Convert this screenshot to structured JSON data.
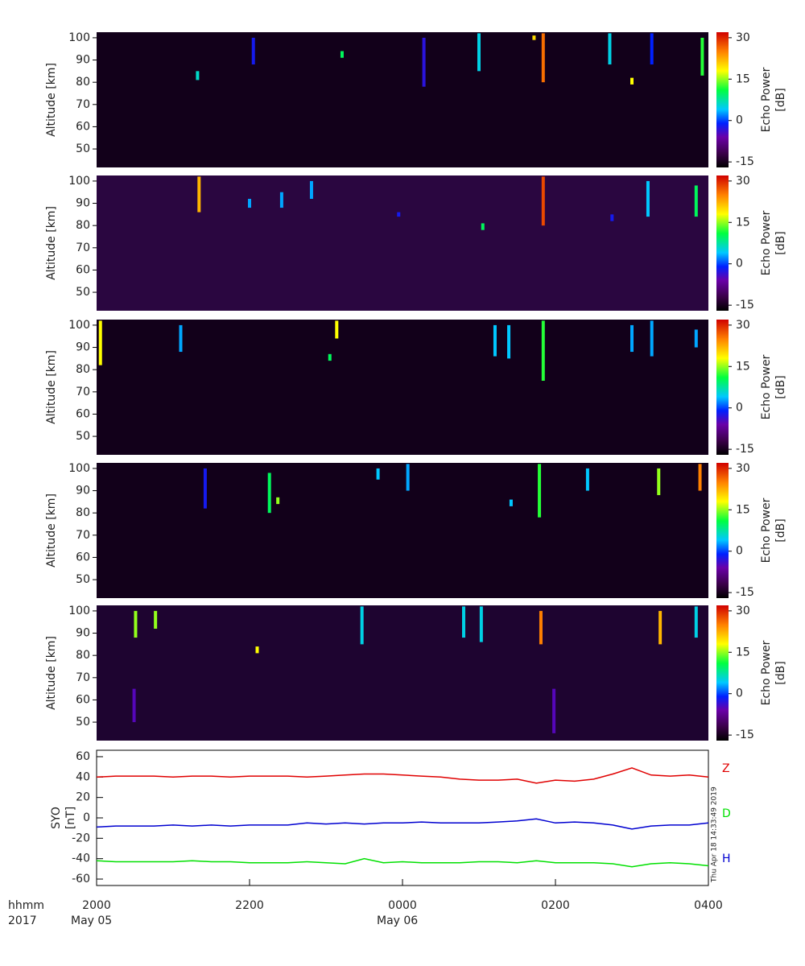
{
  "chart_data": [
    {
      "type": "heatmap",
      "ylabel": "Altitude [km]",
      "clabel": "Echo Power",
      "cunit": "[dB]",
      "xlim": [
        0,
        8
      ],
      "ylim": [
        41.7,
        102.5
      ],
      "yticks": [
        50,
        60,
        70,
        80,
        90,
        100
      ],
      "clim": [
        -17,
        32
      ],
      "cticks": [
        -15,
        0,
        15,
        30
      ],
      "background": "#12001a",
      "colormap": {
        "values": [
          -17,
          -12,
          -6,
          -1,
          4,
          11,
          18,
          25,
          32
        ],
        "colors": [
          "#000000",
          "#3a0048",
          "#6a00a8",
          "#0020ff",
          "#00c8ff",
          "#00ff40",
          "#ffff00",
          "#ff8000",
          "#d00000"
        ]
      },
      "echoes": {
        "time": [
          5.84,
          5.0,
          4.28,
          2.05,
          6.71,
          7.26,
          7.92,
          1.32,
          5.72,
          7.0,
          3.21
        ],
        "alt_low": [
          80,
          85,
          78,
          88,
          88,
          88,
          83,
          81,
          99,
          79,
          91
        ],
        "alt_high": [
          102,
          102,
          100,
          100,
          102,
          102,
          100,
          85,
          101,
          82,
          94
        ],
        "power": [
          26,
          5,
          -3,
          -2,
          5,
          -1,
          12,
          6,
          20,
          18,
          10
        ]
      }
    },
    {
      "type": "heatmap",
      "ylabel": "Altitude [km]",
      "clabel": "Echo Power",
      "cunit": "[dB]",
      "xlim": [
        0,
        8
      ],
      "ylim": [
        41.7,
        102.5
      ],
      "yticks": [
        50,
        60,
        70,
        80,
        90,
        100
      ],
      "clim": [
        -17,
        32
      ],
      "cticks": [
        -15,
        0,
        15,
        30
      ],
      "background": "#2a0640",
      "colormap": {
        "values": [
          -17,
          -12,
          -6,
          -1,
          4,
          11,
          18,
          25,
          32
        ],
        "colors": [
          "#000000",
          "#3a0048",
          "#6a00a8",
          "#0020ff",
          "#00c8ff",
          "#00ff40",
          "#ffff00",
          "#ff8000",
          "#d00000"
        ]
      },
      "echoes": {
        "time": [
          1.34,
          5.84,
          2.0,
          2.42,
          5.05,
          6.74,
          7.21,
          7.84,
          2.81,
          3.95
        ],
        "alt_low": [
          86,
          80,
          88,
          88,
          78,
          82,
          84,
          84,
          92,
          84
        ],
        "alt_high": [
          102,
          102,
          92,
          95,
          81,
          85,
          100,
          98,
          100,
          86
        ],
        "power": [
          22,
          28,
          3,
          3,
          10,
          -2,
          4,
          10,
          3,
          -2
        ]
      }
    },
    {
      "type": "heatmap",
      "ylabel": "Altitude [km]",
      "clabel": "Echo Power",
      "cunit": "[dB]",
      "xlim": [
        0,
        8
      ],
      "ylim": [
        41.7,
        102.5
      ],
      "yticks": [
        50,
        60,
        70,
        80,
        90,
        100
      ],
      "clim": [
        -17,
        32
      ],
      "cticks": [
        -15,
        0,
        15,
        30
      ],
      "background": "#12001a",
      "colormap": {
        "values": [
          -17,
          -12,
          -6,
          -1,
          4,
          11,
          18,
          25,
          32
        ],
        "colors": [
          "#000000",
          "#3a0048",
          "#6a00a8",
          "#0020ff",
          "#00c8ff",
          "#00ff40",
          "#ffff00",
          "#ff8000",
          "#d00000"
        ]
      },
      "echoes": {
        "time": [
          0.05,
          3.14,
          5.84,
          5.39,
          5.21,
          1.1,
          7.0,
          7.26,
          7.84,
          3.05
        ],
        "alt_low": [
          82,
          94,
          75,
          85,
          86,
          88,
          88,
          86,
          90,
          84
        ],
        "alt_high": [
          102,
          102,
          102,
          100,
          100,
          100,
          100,
          102,
          98,
          87
        ],
        "power": [
          18,
          18,
          12,
          4,
          4,
          3,
          3,
          3,
          3,
          10
        ]
      }
    },
    {
      "type": "heatmap",
      "ylabel": "Altitude [km]",
      "clabel": "Echo Power",
      "cunit": "[dB]",
      "xlim": [
        0,
        8
      ],
      "ylim": [
        41.7,
        102.5
      ],
      "yticks": [
        50,
        60,
        70,
        80,
        90,
        100
      ],
      "clim": [
        -17,
        32
      ],
      "cticks": [
        -15,
        0,
        15,
        30
      ],
      "background": "#12001a",
      "colormap": {
        "values": [
          -17,
          -12,
          -6,
          -1,
          4,
          11,
          18,
          25,
          32
        ],
        "colors": [
          "#000000",
          "#3a0048",
          "#6a00a8",
          "#0020ff",
          "#00c8ff",
          "#00ff40",
          "#ffff00",
          "#ff8000",
          "#d00000"
        ]
      },
      "echoes": {
        "time": [
          2.26,
          4.07,
          5.79,
          7.35,
          7.89,
          1.42,
          5.42,
          6.42,
          3.68,
          2.37
        ],
        "alt_low": [
          80,
          90,
          78,
          88,
          90,
          82,
          83,
          90,
          95,
          84
        ],
        "alt_high": [
          98,
          102,
          102,
          100,
          102,
          100,
          86,
          100,
          100,
          87
        ],
        "power": [
          10,
          3,
          12,
          15,
          25,
          -2,
          4,
          4,
          4,
          15
        ]
      }
    },
    {
      "type": "heatmap",
      "ylabel": "Altitude [km]",
      "clabel": "Echo Power",
      "cunit": "[dB]",
      "xlim": [
        0,
        8
      ],
      "ylim": [
        41.7,
        102.5
      ],
      "yticks": [
        50,
        60,
        70,
        80,
        90,
        100
      ],
      "clim": [
        -17,
        32
      ],
      "cticks": [
        -15,
        0,
        15,
        30
      ],
      "background": "#1e0430",
      "colormap": {
        "values": [
          -17,
          -12,
          -6,
          -1,
          4,
          11,
          18,
          25,
          32
        ],
        "colors": [
          "#000000",
          "#3a0048",
          "#6a00a8",
          "#0020ff",
          "#00c8ff",
          "#00ff40",
          "#ffff00",
          "#ff8000",
          "#d00000"
        ]
      },
      "echoes": {
        "time": [
          0.51,
          0.77,
          3.47,
          4.8,
          5.03,
          5.81,
          5.98,
          7.37,
          7.84,
          0.49,
          2.1
        ],
        "alt_low": [
          88,
          92,
          85,
          88,
          86,
          85,
          45,
          85,
          88,
          50,
          81
        ],
        "alt_high": [
          100,
          100,
          102,
          102,
          102,
          100,
          65,
          100,
          102,
          65,
          84
        ],
        "power": [
          15,
          15,
          5,
          5,
          5,
          25,
          -5,
          22,
          5,
          -5,
          18
        ]
      }
    },
    {
      "type": "line",
      "ylabel": "SYO",
      "yunit": "[nT]",
      "timestamp": "Thu Apr 18 14:33:49 2019",
      "xlim": [
        0,
        8
      ],
      "ylim": [
        -66.3,
        66.3
      ],
      "yticks": [
        60,
        40,
        20,
        0,
        -20,
        -40,
        -60
      ],
      "xticks": [
        {
          "value": 0,
          "label": "2000"
        },
        {
          "value": 2,
          "label": "2200"
        },
        {
          "value": 4,
          "label": "0000"
        },
        {
          "value": 6,
          "label": "0200"
        },
        {
          "value": 8,
          "label": "0400"
        }
      ],
      "x_date_labels": [
        {
          "value": 0,
          "label": "May 05"
        },
        {
          "value": 4,
          "label": "May 06"
        }
      ],
      "x_row_labels": [
        "hhmm",
        "2017"
      ],
      "x": [
        0,
        0.25,
        0.5,
        0.75,
        1,
        1.25,
        1.5,
        1.75,
        2,
        2.25,
        2.5,
        2.75,
        3,
        3.25,
        3.5,
        3.75,
        4,
        4.25,
        4.5,
        4.75,
        5,
        5.25,
        5.5,
        5.75,
        6,
        6.25,
        6.5,
        6.75,
        7,
        7.25,
        7.5,
        7.75,
        8
      ],
      "series": [
        {
          "name": "Z",
          "color": "#e00000",
          "label_color": "#e00000",
          "values": [
            40,
            41,
            41,
            41,
            40,
            41,
            41,
            40,
            41,
            41,
            41,
            40,
            41,
            42,
            43,
            43,
            42,
            41,
            40,
            38,
            37,
            37,
            38,
            34,
            37,
            36,
            38,
            43,
            49,
            42,
            41,
            42,
            40
          ]
        },
        {
          "name": "D",
          "color": "#0000d0",
          "label_color": "#00e000",
          "values": [
            -9,
            -8,
            -8,
            -8,
            -7,
            -8,
            -7,
            -8,
            -7,
            -7,
            -7,
            -5,
            -6,
            -5,
            -6,
            -5,
            -5,
            -4,
            -5,
            -5,
            -5,
            -4,
            -3,
            -1,
            -5,
            -4,
            -5,
            -7,
            -11,
            -8,
            -7,
            -7,
            -5
          ]
        },
        {
          "name": "H",
          "color": "#00e000",
          "label_color": "#0000d0",
          "values": [
            -42,
            -43,
            -43,
            -43,
            -43,
            -42,
            -43,
            -43,
            -44,
            -44,
            -44,
            -43,
            -44,
            -45,
            -40,
            -44,
            -43,
            -44,
            -44,
            -44,
            -43,
            -43,
            -44,
            -42,
            -44,
            -44,
            -44,
            -45,
            -48,
            -45,
            -44,
            -45,
            -47
          ]
        }
      ]
    }
  ]
}
